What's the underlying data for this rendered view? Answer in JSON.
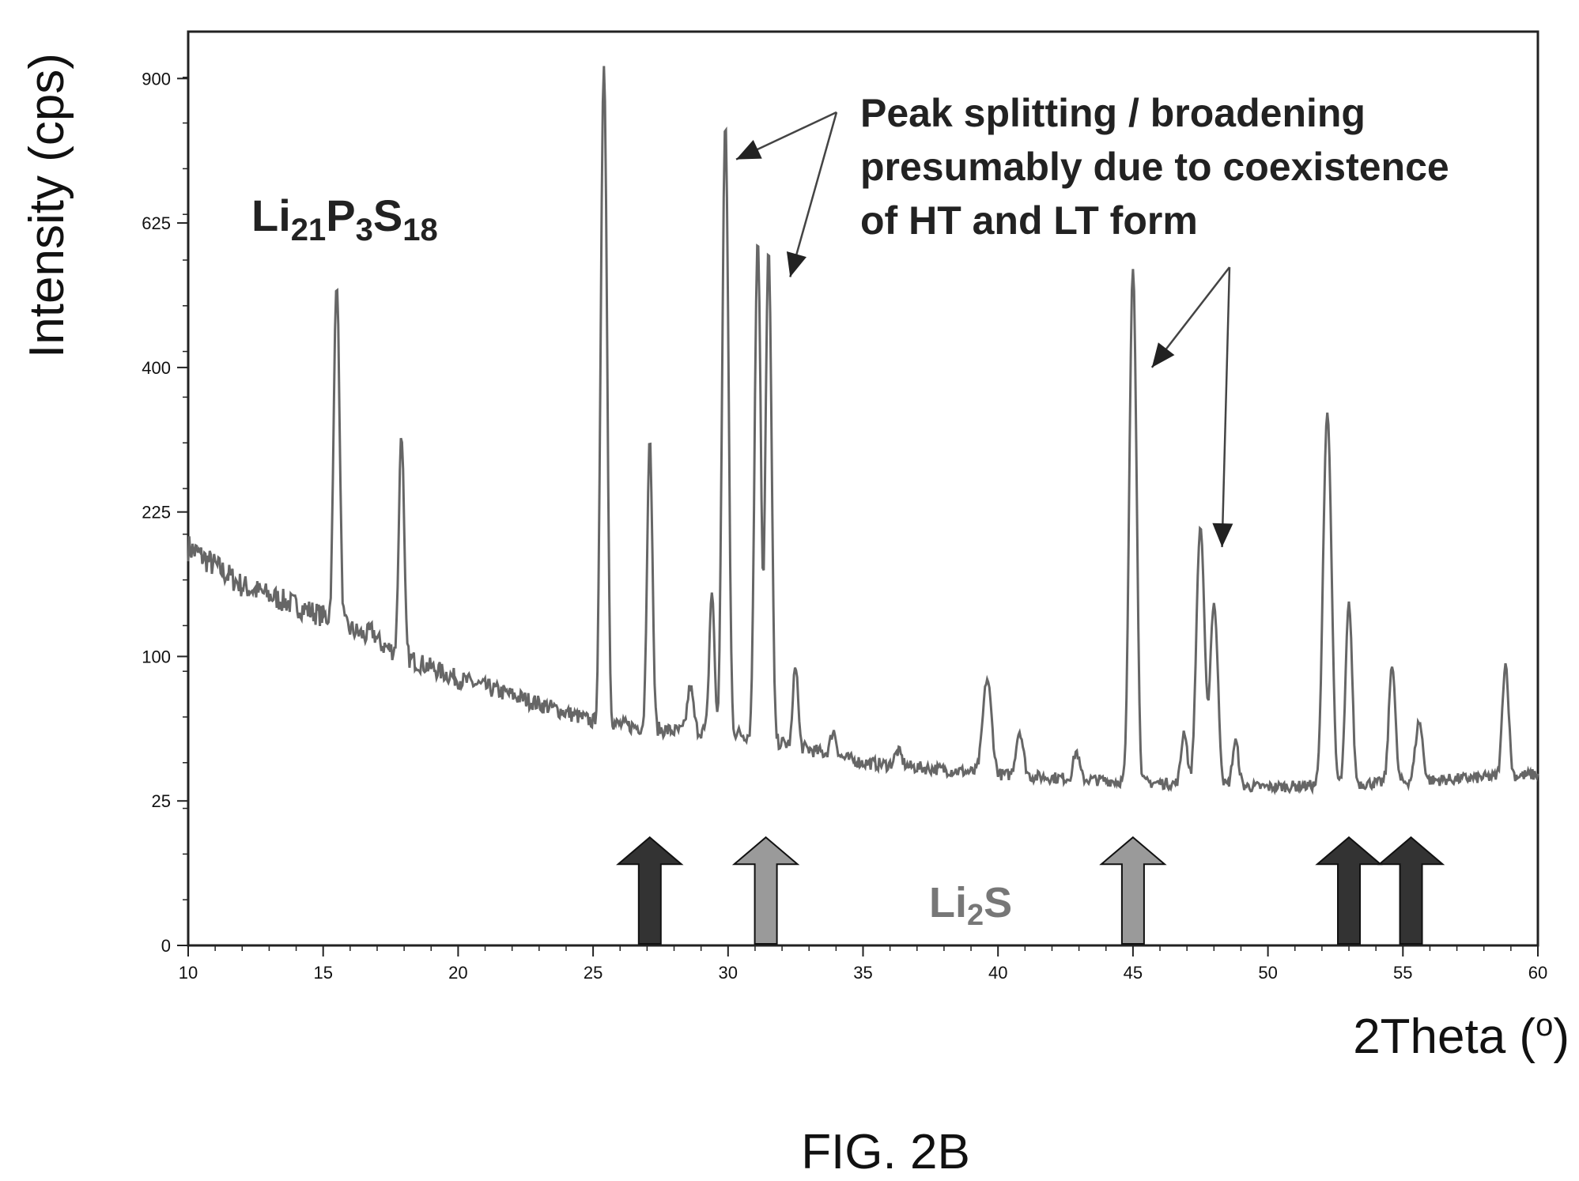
{
  "figure_caption": "FIG. 2B",
  "chart_data": {
    "type": "line",
    "xlabel": "2Theta (o)",
    "xlabel_main": "2Theta (",
    "xlabel_unit": "o",
    "xlabel_close": ")",
    "ylabel": "Intensity (cps)",
    "xlim": [
      10,
      60
    ],
    "ylim": [
      0,
      1000
    ],
    "y_scale": "sqrt",
    "grid": false,
    "x_ticks": [
      10,
      15,
      20,
      25,
      30,
      35,
      40,
      45,
      50,
      55,
      60
    ],
    "x_tick_labels": [
      "10",
      "15",
      "20",
      "25",
      "30",
      "35",
      "40",
      "45",
      "50",
      "55",
      "60"
    ],
    "y_ticks": [
      0,
      25,
      100,
      225,
      400,
      625,
      900
    ],
    "y_tick_labels": [
      "0",
      "25",
      "100",
      "225",
      "400",
      "625",
      "900"
    ],
    "series": [
      {
        "color": "#666666",
        "baseline": [
          [
            10,
            190
          ],
          [
            12,
            155
          ],
          [
            15,
            130
          ],
          [
            18,
            100
          ],
          [
            20,
            85
          ],
          [
            25,
            60
          ],
          [
            28,
            55
          ],
          [
            30,
            55
          ],
          [
            35,
            40
          ],
          [
            40,
            35
          ],
          [
            45,
            32
          ],
          [
            50,
            30
          ],
          [
            55,
            32
          ],
          [
            60,
            35
          ]
        ],
        "peaks": [
          {
            "x": 15.5,
            "y": 530,
            "w": 0.22
          },
          {
            "x": 17.9,
            "y": 315,
            "w": 0.2
          },
          {
            "x": 16.8,
            "y": 118,
            "w": 0.3
          },
          {
            "x": 25.4,
            "y": 930,
            "w": 0.22
          },
          {
            "x": 27.1,
            "y": 305,
            "w": 0.2
          },
          {
            "x": 28.6,
            "y": 80,
            "w": 0.25
          },
          {
            "x": 29.4,
            "y": 150,
            "w": 0.2
          },
          {
            "x": 29.9,
            "y": 810,
            "w": 0.22
          },
          {
            "x": 31.1,
            "y": 600,
            "w": 0.22
          },
          {
            "x": 31.5,
            "y": 580,
            "w": 0.22
          },
          {
            "x": 32.5,
            "y": 95,
            "w": 0.2
          },
          {
            "x": 33.9,
            "y": 55,
            "w": 0.25
          },
          {
            "x": 36.3,
            "y": 45,
            "w": 0.3
          },
          {
            "x": 39.6,
            "y": 85,
            "w": 0.35
          },
          {
            "x": 40.8,
            "y": 55,
            "w": 0.3
          },
          {
            "x": 42.9,
            "y": 45,
            "w": 0.25
          },
          {
            "x": 45.0,
            "y": 550,
            "w": 0.25
          },
          {
            "x": 46.9,
            "y": 55,
            "w": 0.25
          },
          {
            "x": 47.5,
            "y": 210,
            "w": 0.3
          },
          {
            "x": 48.0,
            "y": 140,
            "w": 0.3
          },
          {
            "x": 48.8,
            "y": 50,
            "w": 0.25
          },
          {
            "x": 52.2,
            "y": 340,
            "w": 0.3
          },
          {
            "x": 53.0,
            "y": 140,
            "w": 0.25
          },
          {
            "x": 54.6,
            "y": 95,
            "w": 0.25
          },
          {
            "x": 55.6,
            "y": 60,
            "w": 0.3
          },
          {
            "x": 58.8,
            "y": 95,
            "w": 0.25
          }
        ]
      }
    ],
    "phase_label": {
      "base": "Li",
      "sub1": "21",
      "mid": "P",
      "sub2": "3",
      "end": "S",
      "sub3": "18"
    },
    "annotation": {
      "lines": [
        "Peak splitting  / broadening",
        "presumably due to coexistence",
        "of HT and LT form"
      ],
      "arrow_targets": [
        {
          "x": 30.3,
          "y": 740
        },
        {
          "x": 32.3,
          "y": 535
        },
        {
          "x": 45.7,
          "y": 400
        },
        {
          "x": 48.3,
          "y": 190
        }
      ]
    },
    "reference_marker_label": {
      "base": "Li",
      "sub": "2",
      "end": "S"
    },
    "reference_markers": [
      {
        "x": 27.1,
        "color": "#333333"
      },
      {
        "x": 31.4,
        "color": "#9a9a9a"
      },
      {
        "x": 45.0,
        "color": "#9a9a9a"
      },
      {
        "x": 53.0,
        "color": "#333333"
      },
      {
        "x": 55.3,
        "color": "#333333"
      }
    ]
  }
}
